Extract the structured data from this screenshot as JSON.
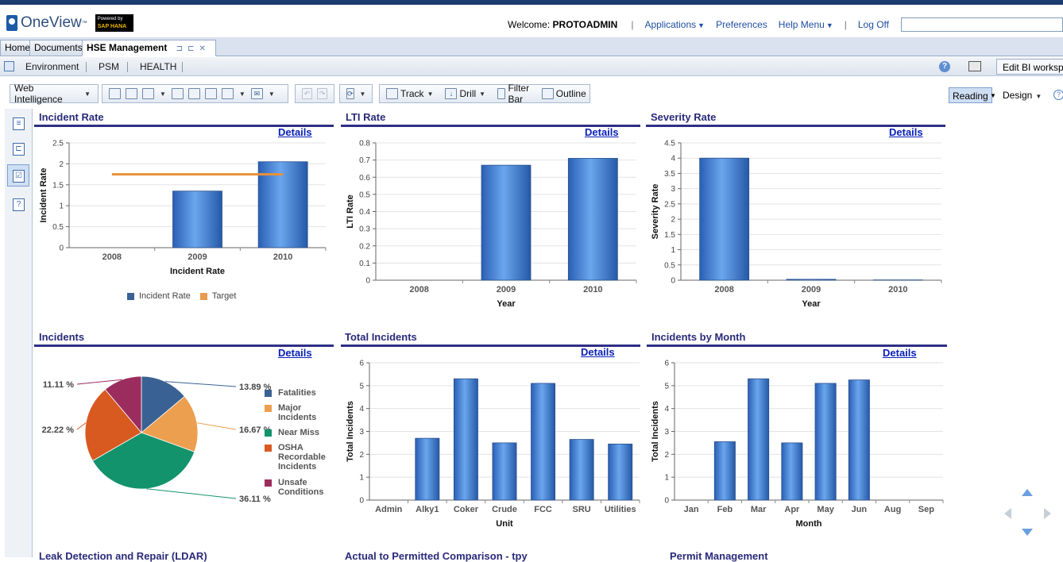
{
  "header": {
    "logo": "OneView",
    "logo_tm": "™",
    "badge_line1": "Powered by",
    "badge_line2": "SAP HANA",
    "welcome_prefix": "Welcome:",
    "username": "PROTOADMIN",
    "nav": {
      "applications": "Applications",
      "preferences": "Preferences",
      "help_menu": "Help Menu",
      "log_off": "Log Off"
    },
    "search_value": ""
  },
  "doc_tabs": [
    "Home",
    "Documents",
    "HSE Management"
  ],
  "bi_nav": {
    "items": [
      "Environment",
      "PSM",
      "HEALTH"
    ],
    "edit_workspace": "Edit BI workspace"
  },
  "toolbar": {
    "web_intelligence": "Web Intelligence",
    "track": "Track",
    "drill": "Drill",
    "filter_bar": "Filter Bar",
    "outline": "Outline",
    "reading": "Reading",
    "design": "Design"
  },
  "panels": {
    "incident_rate": {
      "title": "Incident Rate",
      "details": "Details"
    },
    "lti_rate": {
      "title": "LTI Rate",
      "details": "Details"
    },
    "severity_rate": {
      "title": "Severity Rate",
      "details": "Details"
    },
    "incidents": {
      "title": "Incidents",
      "details": "Details"
    },
    "total_incidents": {
      "title": "Total Incidents",
      "details": "Details"
    },
    "incidents_by_month": {
      "title": "Incidents by Month",
      "details": "Details"
    }
  },
  "cut_titles": [
    "Leak Detection and Repair (LDAR)",
    "Actual to Permitted Comparison - tpy",
    "Permit Management"
  ],
  "colors": {
    "bar": "#3f7fd6",
    "target": "#e89b4f",
    "title": "#2a2a7a",
    "link": "#0a21b8"
  },
  "chart_data": [
    {
      "id": "incident_rate",
      "type": "bar",
      "categories": [
        "2008",
        "2009",
        "2010"
      ],
      "series": [
        {
          "name": "Incident Rate",
          "values": [
            0,
            1.35,
            2.05
          ]
        },
        {
          "name": "Target",
          "values": [
            1.75,
            1.75,
            1.75
          ]
        }
      ],
      "xlabel": "Incident Rate",
      "ylabel": "Incident Rate",
      "ylim": [
        0,
        2.5
      ],
      "yticks": [
        "0",
        "0.5",
        "1",
        "1.5",
        "2",
        "2.5"
      ],
      "legend": "bottom"
    },
    {
      "id": "lti_rate",
      "type": "bar",
      "categories": [
        "2008",
        "2009",
        "2010"
      ],
      "values": [
        0,
        0.67,
        0.71
      ],
      "xlabel": "Year",
      "ylabel": "LTI Rate",
      "ylim": [
        0,
        0.8
      ],
      "yticks": [
        "0",
        "0.1",
        "0.2",
        "0.3",
        "0.4",
        "0.5",
        "0.6",
        "0.7",
        "0.8"
      ]
    },
    {
      "id": "severity_rate",
      "type": "bar",
      "categories": [
        "2008",
        "2009",
        "2010"
      ],
      "values": [
        4,
        0.03,
        0.01
      ],
      "xlabel": "Year",
      "ylabel": "Severity Rate",
      "ylim": [
        0,
        4.5
      ],
      "yticks": [
        "0",
        "0.5",
        "1",
        "1.5",
        "2",
        "2.5",
        "3",
        "3.5",
        "4",
        "4.5"
      ]
    },
    {
      "id": "incidents",
      "type": "pie",
      "slices": [
        {
          "name": "Fatalities",
          "value": 13.89,
          "label": "13.89 %",
          "color": "#3a6193"
        },
        {
          "name": "Major Incidents",
          "value": 16.67,
          "label": "16.67 %",
          "color": "#ec9f4f"
        },
        {
          "name": "Near Miss",
          "value": 36.11,
          "label": "36.11 %",
          "color": "#13936b"
        },
        {
          "name": "OSHA Recordable Incidents",
          "value": 22.22,
          "label": "22.22 %",
          "color": "#d85a21"
        },
        {
          "name": "Unsafe Conditions",
          "value": 11.11,
          "label": "11.11 %",
          "color": "#9b2d5e"
        }
      ],
      "legend": "right"
    },
    {
      "id": "total_incidents",
      "type": "bar",
      "categories": [
        "Admin",
        "Alky1",
        "Coker",
        "Crude",
        "FCC",
        "SRU",
        "Utilities"
      ],
      "values": [
        0,
        2.7,
        5.3,
        2.5,
        5.1,
        2.65,
        2.45
      ],
      "xlabel": "Unit",
      "ylabel": "Total Incidents",
      "ylim": [
        0,
        6
      ],
      "yticks": [
        "0",
        "1",
        "2",
        "3",
        "4",
        "5",
        "6"
      ]
    },
    {
      "id": "incidents_by_month",
      "type": "bar",
      "categories": [
        "Jan",
        "Feb",
        "Mar",
        "Apr",
        "May",
        "Jun",
        "Aug",
        "Sep"
      ],
      "values": [
        0,
        2.55,
        5.3,
        2.5,
        5.1,
        5.25,
        0,
        0
      ],
      "xlabel": "Month",
      "ylabel": "Total Incidents",
      "ylim": [
        0,
        6
      ],
      "yticks": [
        "0",
        "1",
        "2",
        "3",
        "4",
        "5",
        "6"
      ]
    }
  ]
}
